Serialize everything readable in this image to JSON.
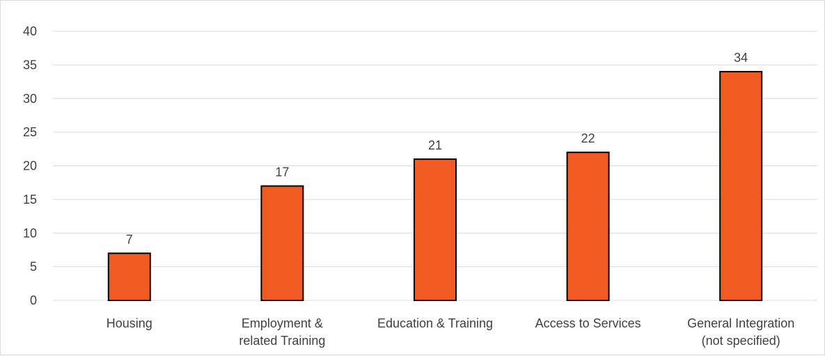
{
  "chart_data": {
    "type": "bar",
    "categories": [
      [
        "Housing"
      ],
      [
        "Employment &",
        "related Training"
      ],
      [
        "Education & Training"
      ],
      [
        "Access to Services"
      ],
      [
        "General Integration",
        "(not specified)"
      ]
    ],
    "values": [
      7,
      17,
      21,
      22,
      34
    ],
    "ylim": [
      0,
      40
    ],
    "yticks": [
      0,
      5,
      10,
      15,
      20,
      25,
      30,
      35,
      40
    ],
    "grid": true,
    "data_labels": true,
    "bar_color": "#f05a23",
    "bar_stroke": "#000000",
    "grid_color": "#d9d9d9",
    "text_color": "#404040"
  }
}
